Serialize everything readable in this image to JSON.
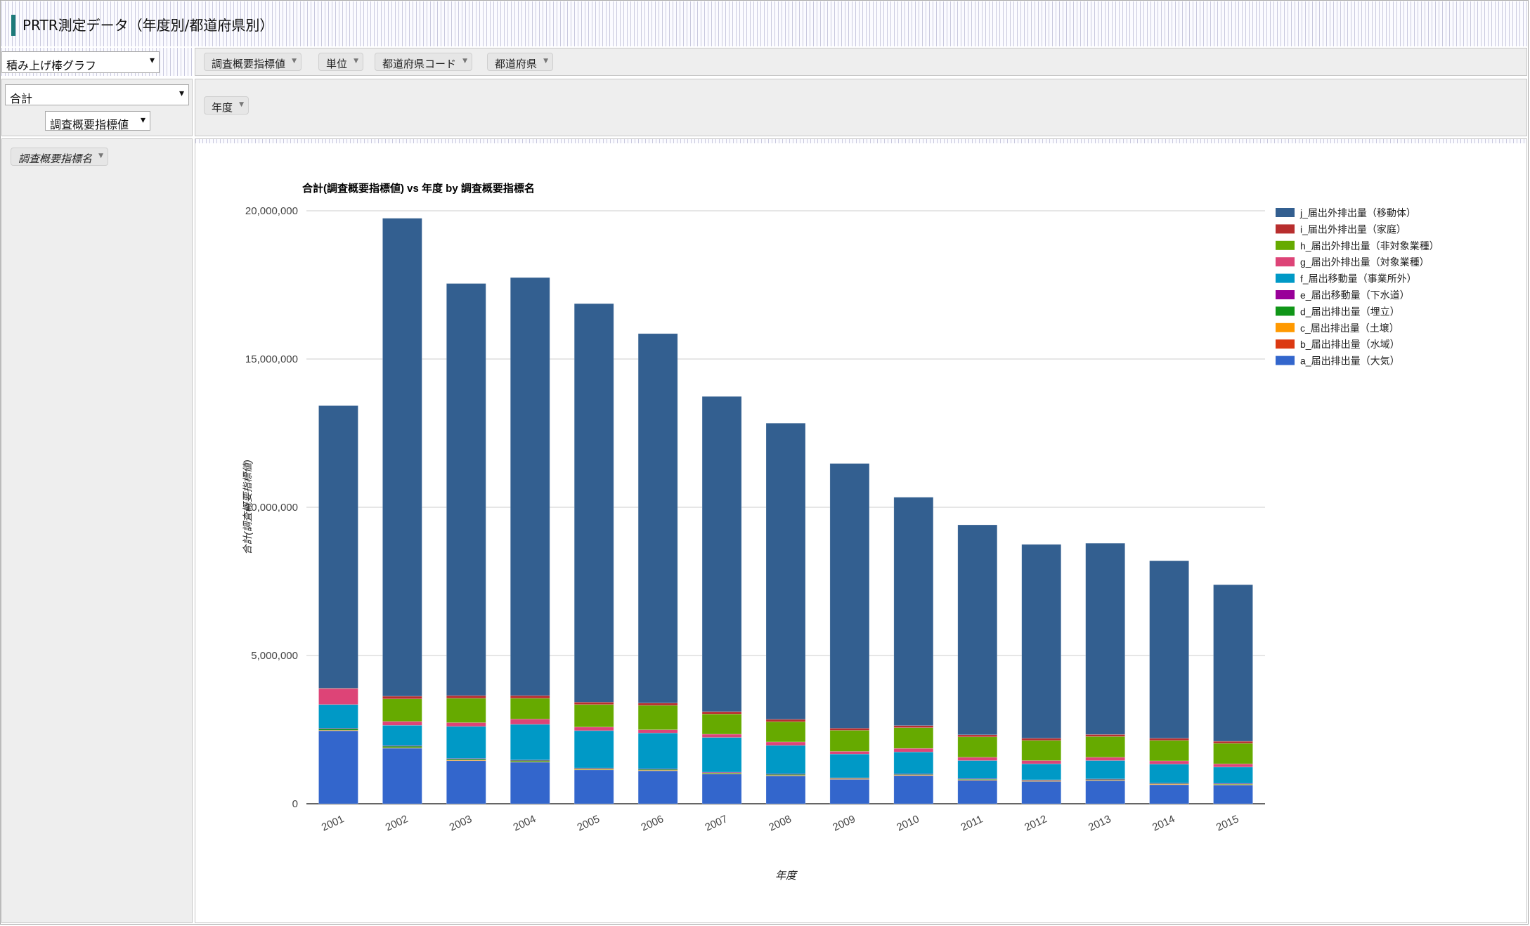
{
  "app": {
    "title": "PRTR測定データ（年度別/都道府県別）"
  },
  "renderer": {
    "value": "積み上げ棒グラフ"
  },
  "aggregator": {
    "value": "合計",
    "attribute": "調査概要指標値"
  },
  "column_fields": [
    "調査概要指標値",
    "単位",
    "都道府県コード",
    "都道府県"
  ],
  "row_fields": [
    "年度"
  ],
  "unused_fields": [
    "調査概要指標名"
  ],
  "colors": {
    "j": "#335f90",
    "i": "#b82e2e",
    "h": "#66aa00",
    "g": "#dd4477",
    "f": "#0099c6",
    "e": "#990099",
    "d": "#109618",
    "c": "#ff9900",
    "b": "#dc3912",
    "a": "#3366cc"
  },
  "chart_data": {
    "type": "bar",
    "stacked": true,
    "title": "合計(調査概要指標値) vs 年度 by 調査概要指標名",
    "xlabel": "年度",
    "ylabel": "合計(調査概要指標値)",
    "ylim": [
      0,
      20000000
    ],
    "yticks": [
      "0",
      "5,000,000",
      "10,000,000",
      "15,000,000",
      "20,000,000"
    ],
    "grid": true,
    "legend_position": "right",
    "categories": [
      "2001",
      "2002",
      "2003",
      "2004",
      "2005",
      "2006",
      "2007",
      "2008",
      "2009",
      "2010",
      "2011",
      "2012",
      "2013",
      "2014",
      "2015"
    ],
    "series": [
      {
        "key": "a",
        "name": "a_届出排出量（大気）",
        "values": [
          2470000,
          1880000,
          1460000,
          1410000,
          1150000,
          1120000,
          1010000,
          950000,
          830000,
          960000,
          800000,
          760000,
          790000,
          650000,
          640000
        ]
      },
      {
        "key": "b",
        "name": "b_届出排出量（水域）",
        "values": [
          10000,
          10000,
          10000,
          10000,
          10000,
          10000,
          10000,
          10000,
          10000,
          10000,
          10000,
          10000,
          10000,
          10000,
          10000
        ]
      },
      {
        "key": "c",
        "name": "c_届出排出量（土壌）",
        "values": [
          2000,
          2000,
          2000,
          2000,
          2000,
          2000,
          2000,
          2000,
          2000,
          2000,
          2000,
          2000,
          2000,
          2000,
          2000
        ]
      },
      {
        "key": "d",
        "name": "d_届出排出量（埋立）",
        "values": [
          60000,
          60000,
          50000,
          50000,
          40000,
          40000,
          40000,
          40000,
          30000,
          30000,
          30000,
          30000,
          30000,
          30000,
          30000
        ]
      },
      {
        "key": "e",
        "name": "e_届出移動量（下水道）",
        "values": [
          5000,
          5000,
          5000,
          5000,
          5000,
          5000,
          5000,
          5000,
          5000,
          5000,
          5000,
          5000,
          5000,
          5000,
          5000
        ]
      },
      {
        "key": "f",
        "name": "f_届出移動量（事業所外）",
        "values": [
          800000,
          690000,
          1080000,
          1200000,
          1260000,
          1210000,
          1170000,
          960000,
          800000,
          740000,
          610000,
          540000,
          620000,
          640000,
          550000
        ]
      },
      {
        "key": "g",
        "name": "g_届出外排出量（対象業種）",
        "values": [
          530000,
          130000,
          130000,
          180000,
          120000,
          110000,
          110000,
          120000,
          90000,
          120000,
          110000,
          110000,
          110000,
          110000,
          110000
        ]
      },
      {
        "key": "h",
        "name": "h_届出外排出量（非対象業種）",
        "values": [
          0,
          760000,
          820000,
          700000,
          760000,
          820000,
          680000,
          680000,
          710000,
          700000,
          690000,
          680000,
          700000,
          690000,
          690000
        ]
      },
      {
        "key": "i",
        "name": "i_届出外排出量（家庭）",
        "values": [
          20000,
          90000,
          90000,
          90000,
          80000,
          80000,
          80000,
          80000,
          70000,
          70000,
          70000,
          70000,
          70000,
          70000,
          70000
        ]
      },
      {
        "key": "j",
        "name": "j_届出外排出量（移動体）",
        "values": [
          9530000,
          16120000,
          13900000,
          14100000,
          13440000,
          12460000,
          10630000,
          9990000,
          8930000,
          7700000,
          7080000,
          6540000,
          6450000,
          5990000,
          5280000
        ]
      }
    ]
  }
}
